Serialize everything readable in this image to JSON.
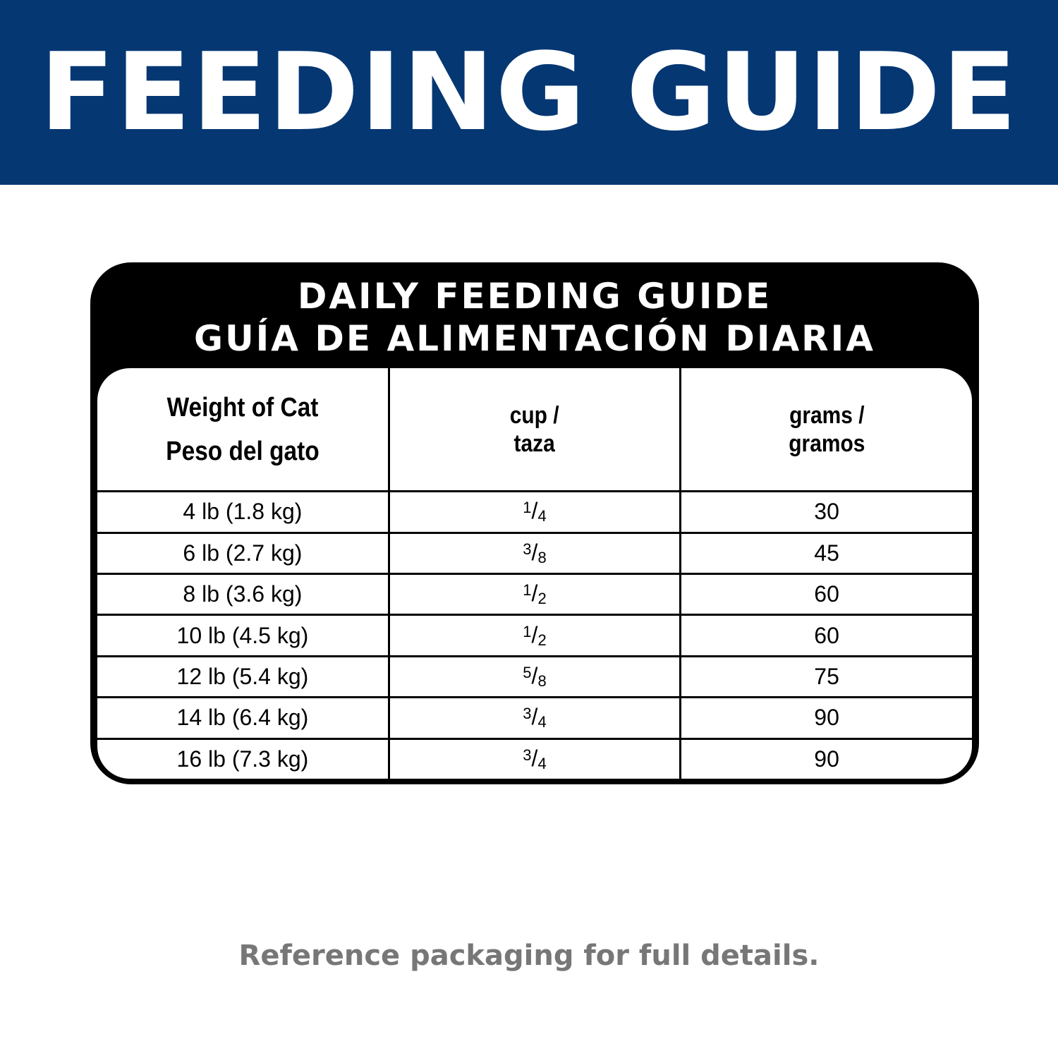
{
  "banner": {
    "title": "FEEDING GUIDE",
    "color": "#053772"
  },
  "card": {
    "title_en": "DAILY FEEDING GUIDE",
    "title_es": "GUÍA DE ALIMENTACIÓN DIARIA",
    "headers": {
      "weight_en": "Weight of Cat",
      "weight_es": "Peso del gato",
      "cup_en": "cup /",
      "cup_es": "taza",
      "grams_en": "grams /",
      "grams_es": "gramos"
    },
    "rows": [
      {
        "weight": "4 lb (1.8 kg)",
        "cup_num": "1",
        "cup_den": "4",
        "grams": "30"
      },
      {
        "weight": "6 lb (2.7 kg)",
        "cup_num": "3",
        "cup_den": "8",
        "grams": "45"
      },
      {
        "weight": "8 lb (3.6 kg)",
        "cup_num": "1",
        "cup_den": "2",
        "grams": "60"
      },
      {
        "weight": "10 lb (4.5 kg)",
        "cup_num": "1",
        "cup_den": "2",
        "grams": "60"
      },
      {
        "weight": "12 lb (5.4 kg)",
        "cup_num": "5",
        "cup_den": "8",
        "grams": "75"
      },
      {
        "weight": "14 lb (6.4 kg)",
        "cup_num": "3",
        "cup_den": "4",
        "grams": "90"
      },
      {
        "weight": "16 lb (7.3 kg)",
        "cup_num": "3",
        "cup_den": "4",
        "grams": "90"
      }
    ]
  },
  "footer": "Reference packaging for full details."
}
